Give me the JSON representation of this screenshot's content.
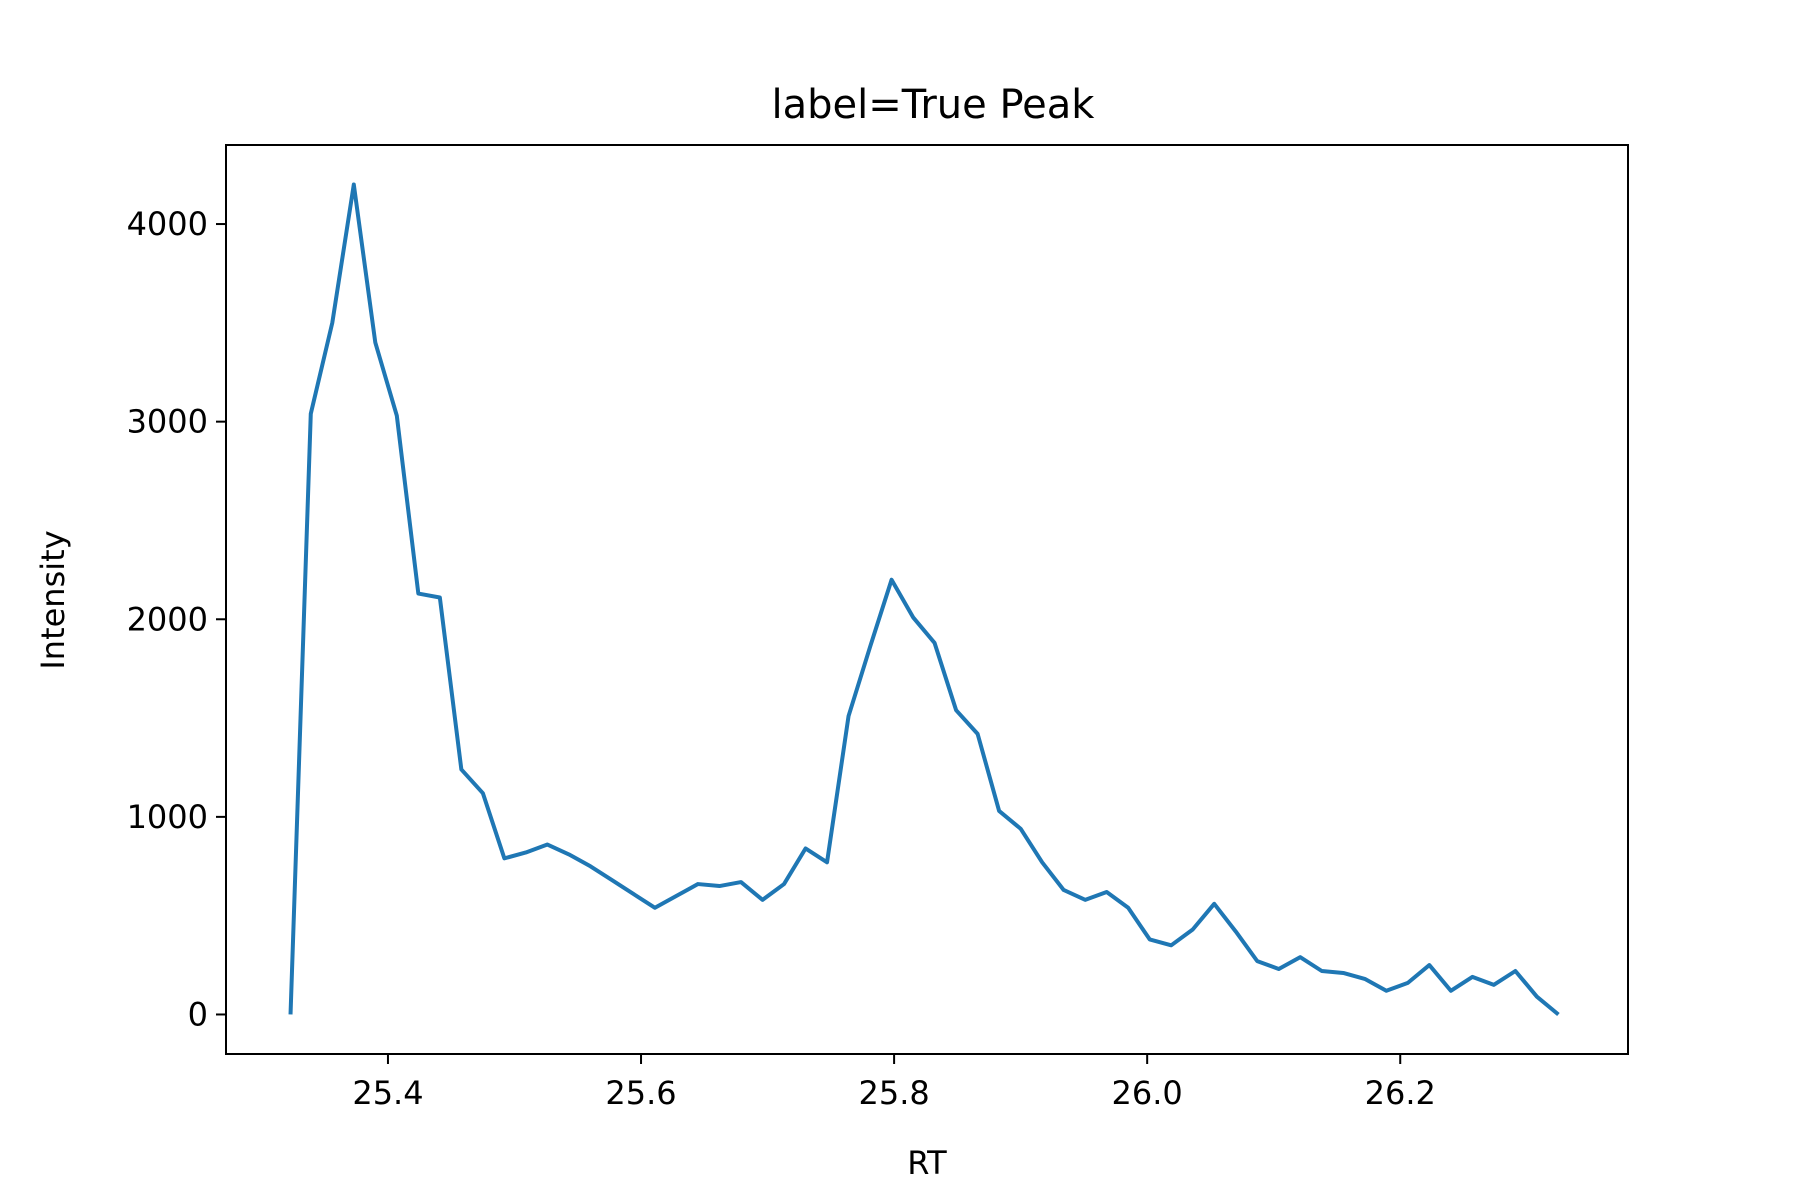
{
  "chart_data": {
    "type": "line",
    "title": "label=True Peak",
    "xlabel": "RT",
    "ylabel": "Intensity",
    "xlim": [
      25.272,
      26.38
    ],
    "ylim": [
      -200,
      4400
    ],
    "xticks": [
      25.4,
      25.6,
      25.8,
      26.0,
      26.2
    ],
    "xtick_labels": [
      "25.4",
      "25.6",
      "25.8",
      "26.0",
      "26.2"
    ],
    "yticks": [
      0,
      1000,
      2000,
      3000,
      4000
    ],
    "ytick_labels": [
      "0",
      "1000",
      "2000",
      "3000",
      "4000"
    ],
    "grid": false,
    "legend": "none",
    "line_color": "#1f77b4",
    "series": [
      {
        "x": [
          25.323,
          25.339,
          25.356,
          25.373,
          25.39,
          25.407,
          25.424,
          25.441,
          25.458,
          25.475,
          25.492,
          25.509,
          25.526,
          25.543,
          25.56,
          25.577,
          25.594,
          25.611,
          25.628,
          25.645,
          25.662,
          25.679,
          25.696,
          25.713,
          25.73,
          25.747,
          25.764,
          25.781,
          25.798,
          25.815,
          25.832,
          25.849,
          25.866,
          25.883,
          25.9,
          25.917,
          25.934,
          25.951,
          25.968,
          25.985,
          26.002,
          26.019,
          26.036,
          26.053,
          26.07,
          26.087,
          26.104,
          26.121,
          26.138,
          26.155,
          26.172,
          26.189,
          26.206,
          26.223,
          26.24,
          26.257,
          26.274,
          26.291,
          26.308,
          26.325
        ],
        "values": [
          0,
          3040,
          3500,
          4200,
          3400,
          3030,
          2130,
          2110,
          1240,
          1120,
          790,
          820,
          860,
          810,
          750,
          680,
          610,
          540,
          600,
          660,
          650,
          670,
          580,
          660,
          840,
          770,
          1510,
          1860,
          2200,
          2010,
          1880,
          1540,
          1420,
          1030,
          940,
          770,
          630,
          580,
          620,
          540,
          380,
          350,
          430,
          560,
          420,
          270,
          230,
          290,
          220,
          210,
          180,
          120,
          160,
          250,
          120,
          190,
          150,
          220,
          90,
          0
        ]
      }
    ]
  }
}
